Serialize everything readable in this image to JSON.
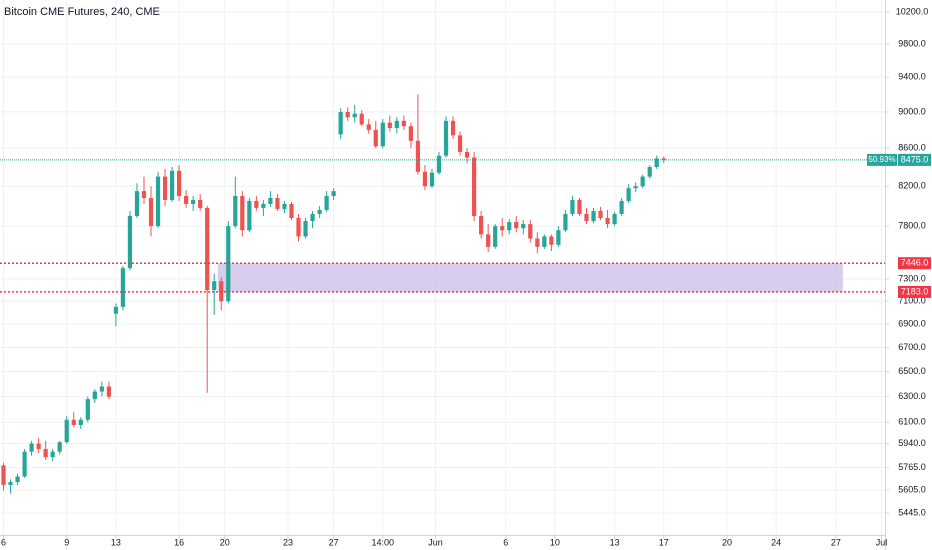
{
  "chart_data": {
    "type": "candlestick",
    "title": "Bitcoin CME Futures, 240, CME",
    "up_color": "#26a69a",
    "down_color": "#ef5350",
    "log": true,
    "grid": true,
    "xlim": [
      -0.5,
      125.5
    ],
    "xticks": [
      {
        "value": 0,
        "label": "6"
      },
      {
        "value": 9,
        "label": "9"
      },
      {
        "value": 16,
        "label": "13"
      },
      {
        "value": 25,
        "label": "16"
      },
      {
        "value": 31.5,
        "label": "20"
      },
      {
        "value": 40.5,
        "label": "23"
      },
      {
        "value": 47,
        "label": "27"
      },
      {
        "value": 54,
        "label": "14:00"
      },
      {
        "value": 61.5,
        "label": "Jun"
      },
      {
        "value": 71.5,
        "label": "6"
      },
      {
        "value": 78.5,
        "label": "10"
      },
      {
        "value": 87,
        "label": "13"
      },
      {
        "value": 94,
        "label": "17"
      },
      {
        "value": 103,
        "label": "20"
      },
      {
        "value": 110,
        "label": "24"
      },
      {
        "value": 118.5,
        "label": "27"
      },
      {
        "value": 125,
        "label": "Jul"
      }
    ],
    "ylim": [
      5297,
      10355
    ],
    "yticks": [
      {
        "value": 10200,
        "label": "10200.0"
      },
      {
        "value": 9800,
        "label": "9800.0"
      },
      {
        "value": 9400,
        "label": "9400.0"
      },
      {
        "value": 9000,
        "label": "9000.0"
      },
      {
        "value": 8600,
        "label": "8600.0"
      },
      {
        "value": 8200,
        "label": "8200.0"
      },
      {
        "value": 7800,
        "label": "7800.0"
      },
      {
        "value": 7300,
        "label": "7300.0"
      },
      {
        "value": 7100,
        "label": "7100.0"
      },
      {
        "value": 6900,
        "label": "6900.0"
      },
      {
        "value": 6700,
        "label": "6700.0"
      },
      {
        "value": 6500,
        "label": "6500.0"
      },
      {
        "value": 6300,
        "label": "6300.0"
      },
      {
        "value": 6100,
        "label": "6100.0"
      },
      {
        "value": 5940,
        "label": "5940.0"
      },
      {
        "value": 5765,
        "label": "5765.0"
      },
      {
        "value": 5605,
        "label": "5605.0"
      },
      {
        "value": 5445,
        "label": "5445.0"
      }
    ],
    "open": [
      5780,
      5640,
      5660,
      5700,
      5880,
      5940,
      5900,
      5840,
      5880,
      5950,
      6120,
      6080,
      6120,
      6280,
      6340,
      6380,
      6990,
      7050,
      7400,
      7900,
      8150,
      8080,
      7800,
      8300,
      8060,
      8360,
      8100,
      8020,
      8060,
      7980,
      7200,
      7280,
      7100,
      7800,
      8100,
      7760,
      8050,
      7980,
      8020,
      8080,
      7970,
      8020,
      7880,
      7700,
      7850,
      7920,
      7960,
      8100,
      8750,
      9000,
      8940,
      8980,
      8860,
      8800,
      8620,
      8880,
      8820,
      8900,
      8840,
      8680,
      8350,
      8200,
      8340,
      8520,
      8900,
      8740,
      8560,
      8500,
      7900,
      7720,
      7600,
      7800,
      7760,
      7840,
      7780,
      7820,
      7680,
      7600,
      7700,
      7620,
      7760,
      7920,
      8060,
      7920,
      7850,
      7950,
      7880,
      7820,
      7920,
      8050,
      8180,
      8200,
      8300,
      8400,
      8490
    ],
    "high": [
      5800,
      5680,
      5720,
      5900,
      5960,
      5980,
      5960,
      5900,
      5960,
      6150,
      6180,
      6140,
      6300,
      6360,
      6420,
      6420,
      7080,
      7420,
      7950,
      8230,
      8300,
      8200,
      8350,
      8380,
      8400,
      8420,
      8160,
      8100,
      8120,
      8000,
      7350,
      7320,
      7850,
      8300,
      8150,
      8080,
      8100,
      8060,
      8150,
      8120,
      8050,
      8040,
      7920,
      7880,
      7950,
      8000,
      8150,
      8180,
      9040,
      9050,
      9080,
      9020,
      8920,
      8900,
      8920,
      8960,
      8940,
      8960,
      8880,
      9200,
      8420,
      8380,
      8560,
      8950,
      8950,
      8780,
      8600,
      8560,
      7950,
      7820,
      7820,
      7880,
      7870,
      7900,
      7860,
      7860,
      7740,
      7720,
      7720,
      7800,
      7960,
      8100,
      8080,
      7980,
      7980,
      7990,
      7960,
      7940,
      8080,
      8220,
      8240,
      8320,
      8420,
      8520,
      8510
    ],
    "low": [
      5600,
      5580,
      5640,
      5690,
      5850,
      5870,
      5820,
      5810,
      5860,
      5940,
      6060,
      6050,
      6100,
      6250,
      6300,
      6280,
      6880,
      7020,
      7380,
      7880,
      8020,
      7700,
      7780,
      8000,
      8040,
      8050,
      7980,
      7950,
      7950,
      6330,
      6980,
      7020,
      7080,
      7780,
      7700,
      7740,
      7950,
      7900,
      7990,
      7950,
      7930,
      7860,
      7650,
      7680,
      7780,
      7880,
      7940,
      8060,
      8700,
      8900,
      8880,
      8840,
      8760,
      8600,
      8600,
      8780,
      8760,
      8800,
      8600,
      8320,
      8160,
      8180,
      8320,
      8500,
      8700,
      8520,
      8440,
      7850,
      7680,
      7550,
      7580,
      7700,
      7720,
      7740,
      7720,
      7640,
      7540,
      7580,
      7560,
      7600,
      7740,
      7900,
      7900,
      7820,
      7830,
      7860,
      7780,
      7800,
      7900,
      8030,
      8140,
      8180,
      8280,
      8380,
      8440
    ],
    "close": [
      5640,
      5660,
      5700,
      5880,
      5940,
      5900,
      5840,
      5880,
      5950,
      6120,
      6080,
      6120,
      6280,
      6340,
      6380,
      6300,
      7050,
      7400,
      7900,
      8150,
      8080,
      7800,
      8300,
      8060,
      8360,
      8100,
      8020,
      8060,
      7980,
      7200,
      7280,
      7100,
      7800,
      8100,
      7760,
      8050,
      7980,
      8020,
      8080,
      7970,
      8020,
      7880,
      7700,
      7850,
      7920,
      7960,
      8100,
      8150,
      9000,
      8940,
      8980,
      8860,
      8800,
      8620,
      8880,
      8820,
      8900,
      8840,
      8680,
      8350,
      8200,
      8340,
      8520,
      8900,
      8740,
      8560,
      8500,
      7900,
      7720,
      7600,
      7800,
      7760,
      7840,
      7780,
      7820,
      7680,
      7600,
      7700,
      7620,
      7760,
      7920,
      8060,
      7920,
      7850,
      7950,
      7880,
      7820,
      7920,
      8050,
      8180,
      8200,
      8300,
      8400,
      8490,
      8475
    ],
    "levels": [
      {
        "value": 7446,
        "label": "7446.0",
        "color": "#f23645"
      },
      {
        "value": 7183,
        "label": "7183.0",
        "color": "#f23645"
      }
    ],
    "zone": {
      "x": [
        30.5,
        119.5
      ],
      "color": "#d1c4e9"
    },
    "last_price": {
      "value": 8475,
      "label": "8475.0",
      "change_label": "50.93%",
      "color": "#26a69a"
    }
  }
}
